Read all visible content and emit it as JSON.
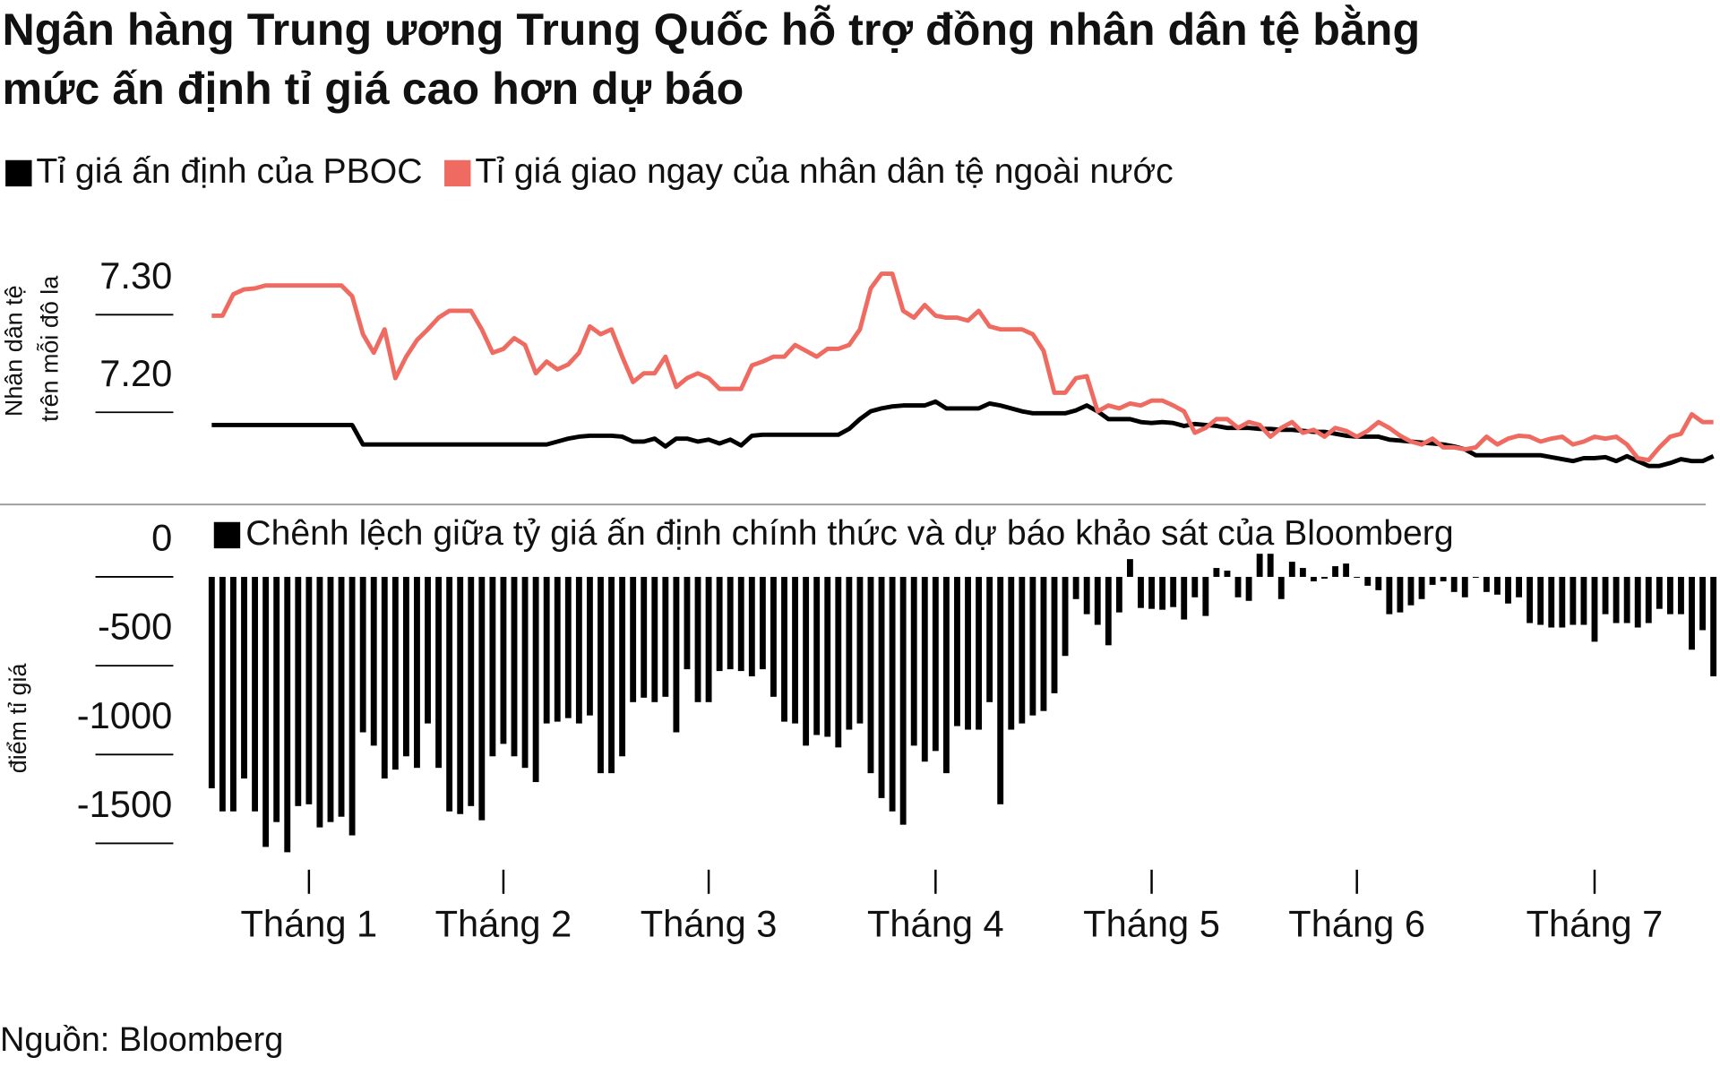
{
  "title": [
    "Ngân hàng Trung ương Trung Quốc hỗ trợ đồng nhân dân tệ bằng",
    "mức ấn định tỉ giá cao hơn dự báo"
  ],
  "source": "Nguồn: Bloomberg",
  "chart_data": [
    {
      "type": "line",
      "y_label": [
        "Nhân dân tệ",
        "trên mỗi đô la"
      ],
      "xlim": [
        0,
        139
      ],
      "ylim": [
        7.11,
        7.35
      ],
      "yticks": [
        {
          "value": 7.3,
          "label": "7.30"
        },
        {
          "value": 7.2,
          "label": "7.20"
        }
      ],
      "series": [
        {
          "name": "Tỉ giá ấn định của PBOC",
          "color": "#000000",
          "values": [
            7.187,
            7.187,
            7.187,
            7.187,
            7.187,
            7.187,
            7.187,
            7.187,
            7.187,
            7.187,
            7.187,
            7.187,
            7.187,
            7.187,
            7.167,
            7.167,
            7.167,
            7.167,
            7.167,
            7.167,
            7.167,
            7.167,
            7.167,
            7.167,
            7.167,
            7.167,
            7.167,
            7.167,
            7.167,
            7.167,
            7.167,
            7.167,
            7.17,
            7.173,
            7.175,
            7.176,
            7.176,
            7.176,
            7.175,
            7.17,
            7.17,
            7.173,
            7.165,
            7.173,
            7.173,
            7.17,
            7.172,
            7.168,
            7.172,
            7.166,
            7.176,
            7.177,
            7.177,
            7.177,
            7.177,
            7.177,
            7.177,
            7.177,
            7.177,
            7.183,
            7.193,
            7.201,
            7.204,
            7.206,
            7.207,
            7.207,
            7.207,
            7.211,
            7.204,
            7.204,
            7.204,
            7.204,
            7.209,
            7.207,
            7.204,
            7.201,
            7.199,
            7.199,
            7.199,
            7.199,
            7.202,
            7.207,
            7.201,
            7.193,
            7.193,
            7.193,
            7.19,
            7.189,
            7.19,
            7.189,
            7.186,
            7.188,
            7.187,
            7.186,
            7.184,
            7.184,
            7.184,
            7.183,
            7.183,
            7.182,
            7.182,
            7.181,
            7.18,
            7.18,
            7.178,
            7.176,
            7.175,
            7.175,
            7.175,
            7.172,
            7.171,
            7.17,
            7.169,
            7.168,
            7.167,
            7.165,
            7.162,
            7.156,
            7.156,
            7.156,
            7.156,
            7.156,
            7.156,
            7.156,
            7.154,
            7.152,
            7.15,
            7.153,
            7.153,
            7.154,
            7.15,
            7.155,
            7.15,
            7.145,
            7.145,
            7.148,
            7.152,
            7.15,
            7.15,
            7.155
          ]
        },
        {
          "name": "Tỉ giá giao ngay của nhân dân tệ ngoài nước",
          "color": "#ef6a60",
          "values": [
            7.299,
            7.299,
            7.321,
            7.326,
            7.327,
            7.33,
            7.33,
            7.33,
            7.33,
            7.33,
            7.33,
            7.33,
            7.33,
            7.319,
            7.28,
            7.261,
            7.285,
            7.235,
            7.257,
            7.274,
            7.285,
            7.297,
            7.304,
            7.304,
            7.304,
            7.285,
            7.261,
            7.265,
            7.276,
            7.269,
            7.24,
            7.252,
            7.244,
            7.249,
            7.261,
            7.288,
            7.28,
            7.285,
            7.257,
            7.231,
            7.24,
            7.24,
            7.257,
            7.226,
            7.235,
            7.24,
            7.235,
            7.224,
            7.224,
            7.224,
            7.248,
            7.252,
            7.257,
            7.257,
            7.269,
            7.263,
            7.257,
            7.265,
            7.265,
            7.269,
            7.285,
            7.327,
            7.342,
            7.342,
            7.304,
            7.297,
            7.31,
            7.299,
            7.297,
            7.297,
            7.294,
            7.304,
            7.288,
            7.285,
            7.285,
            7.285,
            7.28,
            7.263,
            7.22,
            7.22,
            7.235,
            7.237,
            7.201,
            7.207,
            7.204,
            7.209,
            7.207,
            7.212,
            7.212,
            7.207,
            7.201,
            7.179,
            7.184,
            7.193,
            7.193,
            7.184,
            7.19,
            7.187,
            7.175,
            7.184,
            7.19,
            7.179,
            7.182,
            7.175,
            7.184,
            7.181,
            7.175,
            7.181,
            7.19,
            7.184,
            7.176,
            7.17,
            7.167,
            7.173,
            7.164,
            7.164,
            7.162,
            7.164,
            7.175,
            7.167,
            7.173,
            7.176,
            7.175,
            7.17,
            7.173,
            7.175,
            7.167,
            7.17,
            7.175,
            7.173,
            7.175,
            7.167,
            7.153,
            7.151,
            7.164,
            7.175,
            7.178,
            7.198,
            7.19,
            7.19
          ]
        }
      ]
    },
    {
      "type": "bar",
      "y_label": "điểm tỉ giá",
      "xlim": [
        0,
        139
      ],
      "xticks": [
        {
          "value": 9,
          "label": "Tháng 1"
        },
        {
          "value": 27,
          "label": "Tháng 2"
        },
        {
          "value": 46,
          "label": "Tháng 3"
        },
        {
          "value": 67,
          "label": "Tháng 4"
        },
        {
          "value": 87,
          "label": "Tháng 5"
        },
        {
          "value": 106,
          "label": "Tháng 6"
        },
        {
          "value": 128,
          "label": "Tháng 7"
        }
      ],
      "ylim": [
        -1650,
        200
      ],
      "yticks": [
        0,
        -500,
        -1000,
        -1500
      ],
      "series": [
        {
          "name": "Chênh lệch giữa tỷ giá ấn định chính thức và dự báo khảo sát của Bloomberg",
          "color": "#000000",
          "values": [
            -1190,
            -1320,
            -1320,
            -1135,
            -1320,
            -1520,
            -1380,
            -1550,
            -1290,
            -1280,
            -1410,
            -1380,
            -1350,
            -1455,
            -875,
            -950,
            -1135,
            -1085,
            -1010,
            -1075,
            -825,
            -1075,
            -1320,
            -1335,
            -1290,
            -1370,
            -1010,
            -940,
            -1010,
            -1075,
            -1155,
            -825,
            -815,
            -795,
            -825,
            -780,
            -1105,
            -1105,
            -1010,
            -705,
            -680,
            -705,
            -675,
            -875,
            -520,
            -705,
            -705,
            -530,
            -520,
            -530,
            -560,
            -520,
            -675,
            -815,
            -825,
            -950,
            -890,
            -900,
            -960,
            -860,
            -825,
            -1105,
            -1245,
            -1320,
            -1395,
            -950,
            -1040,
            -980,
            -1105,
            -840,
            -860,
            -860,
            -705,
            -1280,
            -860,
            -825,
            -780,
            -755,
            -655,
            -445,
            -125,
            -210,
            -270,
            -385,
            -200,
            100,
            -175,
            -180,
            -185,
            -170,
            -240,
            -115,
            -220,
            50,
            35,
            -115,
            -135,
            130,
            130,
            -125,
            85,
            50,
            -25,
            -10,
            60,
            75,
            -5,
            -50,
            -75,
            -210,
            -200,
            -160,
            -125,
            -45,
            -25,
            -85,
            -115,
            -5,
            -85,
            -100,
            -150,
            -115,
            -260,
            -270,
            -285,
            -285,
            -270,
            -270,
            -365,
            -210,
            -260,
            -260,
            -285,
            -260,
            -180,
            -210,
            -210,
            -410,
            -300,
            -560
          ]
        }
      ]
    }
  ]
}
